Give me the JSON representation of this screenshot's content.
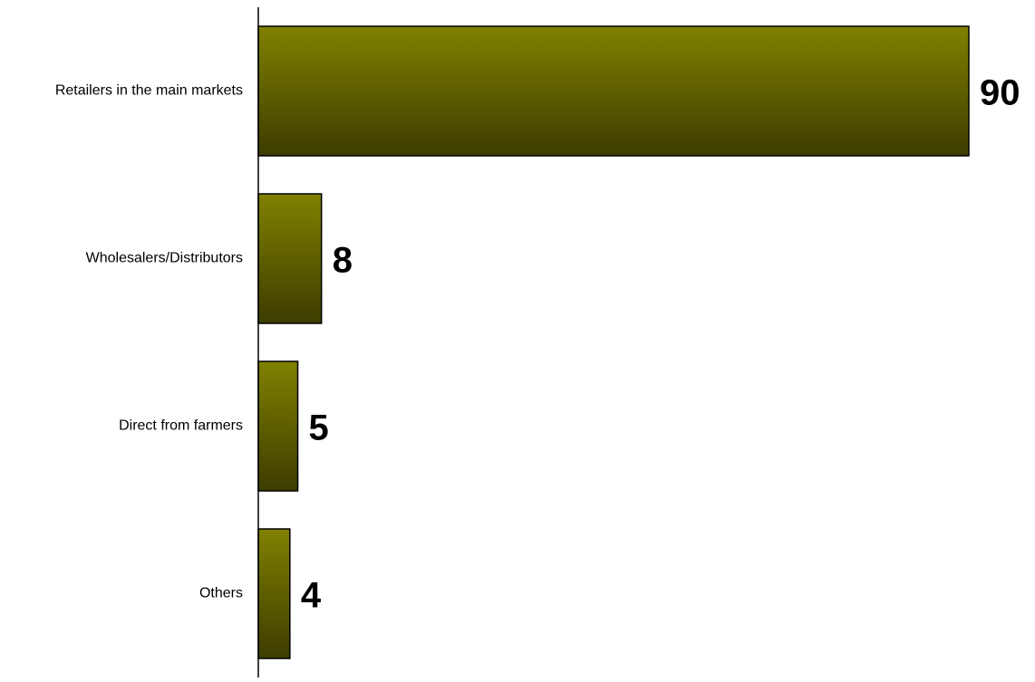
{
  "chart_data": {
    "type": "bar",
    "orientation": "horizontal",
    "categories": [
      "Retailers in the main markets",
      "Wholesalers/Distributors",
      "Direct from farmers",
      "Others"
    ],
    "values": [
      90,
      8,
      5,
      4
    ],
    "title": "",
    "xlabel": "",
    "ylabel": "",
    "xlim": [
      0,
      90
    ],
    "grid": false,
    "legend": "none",
    "colors": {
      "bar_top": "#808000",
      "bar_bottom": "#3d3d00",
      "bar_outline": "#000000",
      "axis": "#000000"
    }
  }
}
